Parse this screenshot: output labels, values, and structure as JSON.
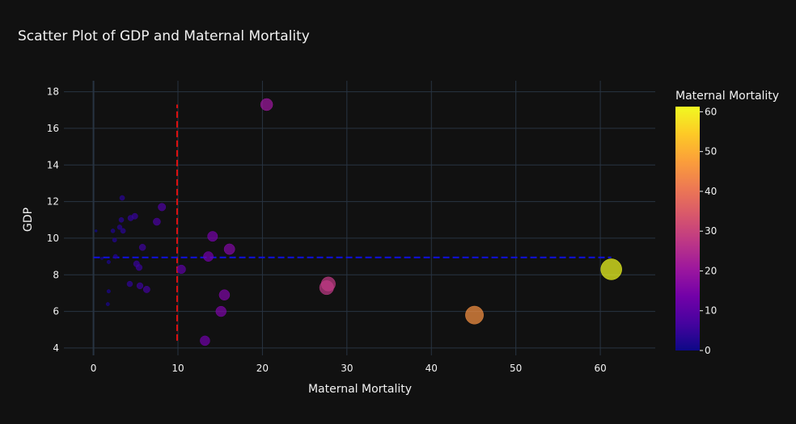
{
  "chart_data": {
    "type": "scatter",
    "title": "Scatter Plot of GDP and Maternal Mortality",
    "xlabel": "Maternal Mortality",
    "ylabel": "GDP",
    "xlim": [
      -3.5,
      66.5
    ],
    "ylim": [
      3.6,
      18.6
    ],
    "x_ticks": [
      0,
      10,
      20,
      30,
      40,
      50,
      60
    ],
    "y_ticks": [
      4,
      6,
      8,
      10,
      12,
      14,
      16,
      18
    ],
    "grid": true,
    "colorbar": {
      "title": "Maternal Mortality",
      "range": [
        0,
        61.3
      ],
      "ticks": [
        0,
        10,
        20,
        30,
        40,
        50,
        60
      ],
      "colorscale": [
        "#0d0887",
        "#46039f",
        "#7201a8",
        "#9c179e",
        "#bd3786",
        "#d8576b",
        "#ed7953",
        "#fb9f3a",
        "#fdca26",
        "#f0f921"
      ]
    },
    "size_encodes": "Maternal Mortality",
    "reference_lines": [
      {
        "orientation": "vertical",
        "x": 9.9,
        "y_from": 4.4,
        "y_to": 17.3,
        "color": "#e01010",
        "style": "dashed"
      },
      {
        "orientation": "horizontal",
        "y": 8.95,
        "x_from": 0,
        "x_to": 61.3,
        "color": "#1010e0",
        "style": "dashed"
      }
    ],
    "points": [
      {
        "x": 0.3,
        "y": 10.4
      },
      {
        "x": 1.0,
        "y": 8.9
      },
      {
        "x": 1.7,
        "y": 6.4
      },
      {
        "x": 1.8,
        "y": 7.1
      },
      {
        "x": 1.8,
        "y": 8.7
      },
      {
        "x": 2.3,
        "y": 10.4
      },
      {
        "x": 2.5,
        "y": 9.9
      },
      {
        "x": 2.6,
        "y": 9.0
      },
      {
        "x": 3.1,
        "y": 10.6
      },
      {
        "x": 3.3,
        "y": 11.0
      },
      {
        "x": 3.4,
        "y": 12.2
      },
      {
        "x": 3.5,
        "y": 10.4
      },
      {
        "x": 4.3,
        "y": 7.5
      },
      {
        "x": 4.4,
        "y": 11.1
      },
      {
        "x": 4.9,
        "y": 11.2
      },
      {
        "x": 5.1,
        "y": 8.6
      },
      {
        "x": 5.4,
        "y": 8.4
      },
      {
        "x": 5.5,
        "y": 7.4
      },
      {
        "x": 5.8,
        "y": 9.5
      },
      {
        "x": 6.3,
        "y": 7.2
      },
      {
        "x": 7.5,
        "y": 10.9
      },
      {
        "x": 8.1,
        "y": 11.7
      },
      {
        "x": 10.4,
        "y": 8.3
      },
      {
        "x": 13.2,
        "y": 4.4
      },
      {
        "x": 13.6,
        "y": 9.0
      },
      {
        "x": 14.1,
        "y": 10.1
      },
      {
        "x": 15.1,
        "y": 6.0
      },
      {
        "x": 15.5,
        "y": 6.9
      },
      {
        "x": 16.1,
        "y": 9.4
      },
      {
        "x": 20.5,
        "y": 17.3
      },
      {
        "x": 27.6,
        "y": 7.3
      },
      {
        "x": 27.8,
        "y": 7.5
      },
      {
        "x": 45.1,
        "y": 5.8
      },
      {
        "x": 61.3,
        "y": 8.3
      }
    ]
  }
}
